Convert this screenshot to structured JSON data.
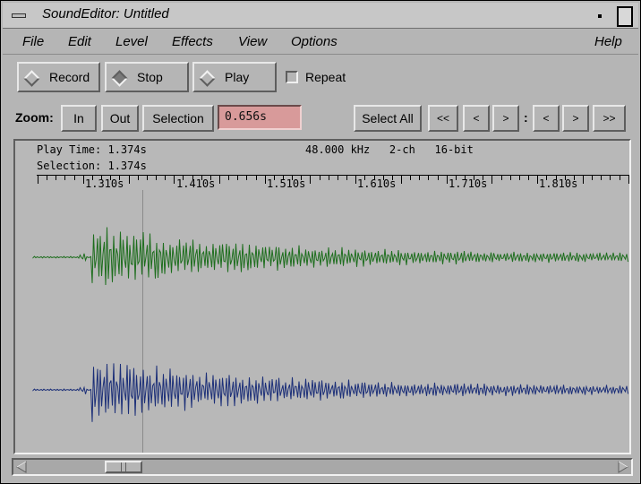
{
  "window": {
    "title": "SoundEditor: Untitled"
  },
  "menubar": {
    "items": [
      {
        "label": "File"
      },
      {
        "label": "Edit"
      },
      {
        "label": "Level"
      },
      {
        "label": "Effects"
      },
      {
        "label": "View"
      },
      {
        "label": "Options"
      },
      {
        "label": "Help"
      }
    ]
  },
  "transport": {
    "record_label": "Record",
    "stop_label": "Stop",
    "play_label": "Play",
    "repeat_label": "Repeat",
    "repeat_checked": false
  },
  "zoom": {
    "label": "Zoom:",
    "in_label": "In",
    "out_label": "Out",
    "selection_label": "Selection",
    "value": "0.656s"
  },
  "nav": {
    "select_all_label": "Select All",
    "rewind_label": "<<",
    "prev_label": "<",
    "next_label": ">",
    "separator": ":",
    "sel_prev_label": "<",
    "sel_next_label": ">",
    "forward_label": ">>"
  },
  "info": {
    "play_time": "Play Time: 1.374s",
    "format": "48.000 kHz   2-ch   16-bit",
    "selection": "Selection: 1.374s"
  },
  "timeline": {
    "ticks": [
      "1.310s",
      "1.410s",
      "1.510s",
      "1.610s",
      "1.710s",
      "1.810s"
    ]
  },
  "colors": {
    "channel1": "#1e6e1e",
    "channel2": "#1c2f78",
    "cursor_line": "#8a8a8a"
  }
}
